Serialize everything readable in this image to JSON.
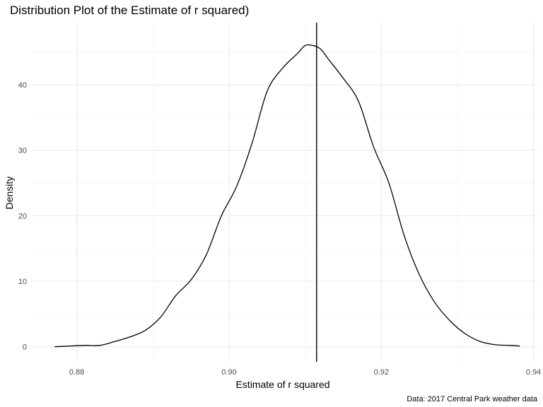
{
  "chart_data": {
    "type": "line",
    "title": "Distribution Plot of the Estimate of r squared)",
    "xlabel": "Estimate of r squared",
    "ylabel": "Density",
    "caption": "Data: 2017 Central Park weather data",
    "xlim": [
      0.874,
      0.9405
    ],
    "ylim": [
      -2.3,
      49.5
    ],
    "x_ticks": [
      0.88,
      0.9,
      0.92,
      0.94
    ],
    "x_tick_labels": [
      "0.88",
      "0.90",
      "0.92",
      "0.94"
    ],
    "y_ticks": [
      0,
      10,
      20,
      30,
      40
    ],
    "y_tick_labels": [
      "0",
      "10",
      "20",
      "30",
      "40"
    ],
    "grid": true,
    "vertical_line_x": 0.9115,
    "series": [
      {
        "x": [
          0.8771,
          0.879,
          0.881,
          0.883,
          0.885,
          0.887,
          0.889,
          0.891,
          0.893,
          0.895,
          0.897,
          0.899,
          0.901,
          0.903,
          0.905,
          0.907,
          0.909,
          0.91,
          0.911,
          0.912,
          0.913,
          0.915,
          0.917,
          0.919,
          0.921,
          0.923,
          0.925,
          0.927,
          0.929,
          0.931,
          0.933,
          0.935,
          0.937,
          0.9382
        ],
        "y": [
          0.0,
          0.1,
          0.2,
          0.2,
          0.8,
          1.5,
          2.5,
          4.5,
          7.8,
          10.2,
          14.0,
          20.0,
          24.5,
          31.0,
          39.0,
          42.5,
          44.8,
          46.0,
          46.0,
          45.5,
          44.0,
          41.0,
          37.5,
          30.5,
          25.0,
          17.0,
          11.0,
          6.8,
          4.0,
          2.0,
          0.8,
          0.3,
          0.2,
          0.1
        ]
      }
    ]
  }
}
